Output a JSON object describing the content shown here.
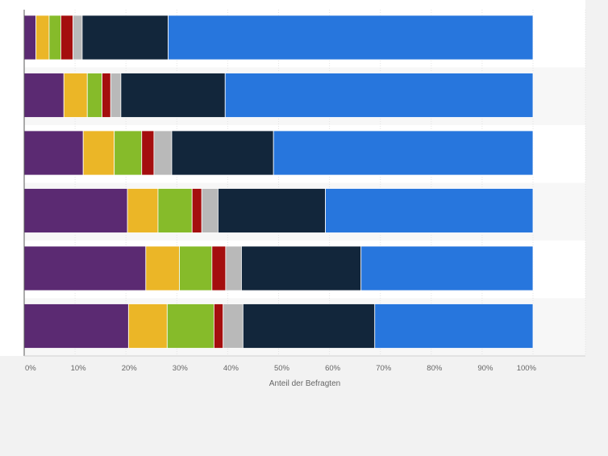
{
  "chart_data": {
    "type": "bar",
    "orientation": "horizontal",
    "stacked": true,
    "categories": [
      "",
      "",
      "",
      "",
      "",
      ""
    ],
    "xlabel": "Anteil der Befragten",
    "ylabel": "",
    "xlim": [
      0,
      100
    ],
    "x_ticks": [
      "0%",
      "10%",
      "20%",
      "30%",
      "40%",
      "50%",
      "60%",
      "70%",
      "80%",
      "90%",
      "100%"
    ],
    "grid": true,
    "legend": "none",
    "series": [
      {
        "color": "#5b2a72",
        "values": [
          2.3,
          7.8,
          11.6,
          20.3,
          23.9,
          20.5
        ]
      },
      {
        "color": "#ebb627",
        "values": [
          2.6,
          4.6,
          6.1,
          6.0,
          6.6,
          7.6
        ]
      },
      {
        "color": "#86bb2a",
        "values": [
          2.3,
          2.9,
          5.4,
          6.7,
          6.4,
          9.2
        ]
      },
      {
        "color": "#a40e0e",
        "values": [
          2.4,
          1.7,
          2.4,
          1.9,
          2.7,
          1.8
        ]
      },
      {
        "color": "#b9b9b9",
        "values": [
          1.8,
          2.0,
          3.5,
          3.2,
          3.1,
          3.9
        ]
      },
      {
        "color": "#12263b",
        "values": [
          16.9,
          20.5,
          20.0,
          21.1,
          23.5,
          25.9
        ]
      },
      {
        "color": "#2776dd",
        "values": [
          71.7,
          60.5,
          51.0,
          40.8,
          33.8,
          31.1
        ]
      }
    ]
  }
}
